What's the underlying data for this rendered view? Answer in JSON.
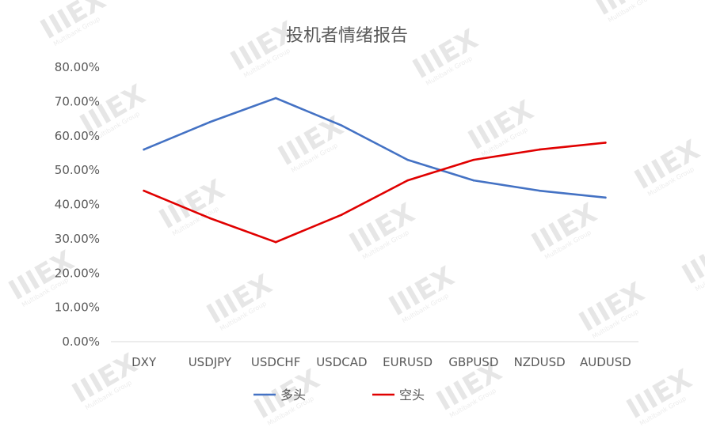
{
  "watermark": {
    "logo_text": "IIIEX",
    "sub_text": "Multibank Group"
  },
  "chart_data": {
    "type": "line",
    "title": "投机者情绪报告",
    "categories": [
      "DXY",
      "USDJPY",
      "USDCHF",
      "USDCAD",
      "EURUSD",
      "GBPUSD",
      "NZDUSD",
      "AUDUSD"
    ],
    "y_ticks": [
      "0.00%",
      "10.00%",
      "20.00%",
      "30.00%",
      "40.00%",
      "50.00%",
      "60.00%",
      "70.00%",
      "80.00%"
    ],
    "ylim": [
      0,
      80
    ],
    "y_unit": "%",
    "grid": false,
    "legend_position": "bottom",
    "series": [
      {
        "name": "多头",
        "color": "#4472C4",
        "values": [
          56,
          64,
          71,
          63,
          53,
          47,
          44,
          42
        ]
      },
      {
        "name": "空头",
        "color": "#E00000",
        "values": [
          44,
          36,
          29,
          37,
          47,
          53,
          56,
          58
        ]
      }
    ]
  }
}
